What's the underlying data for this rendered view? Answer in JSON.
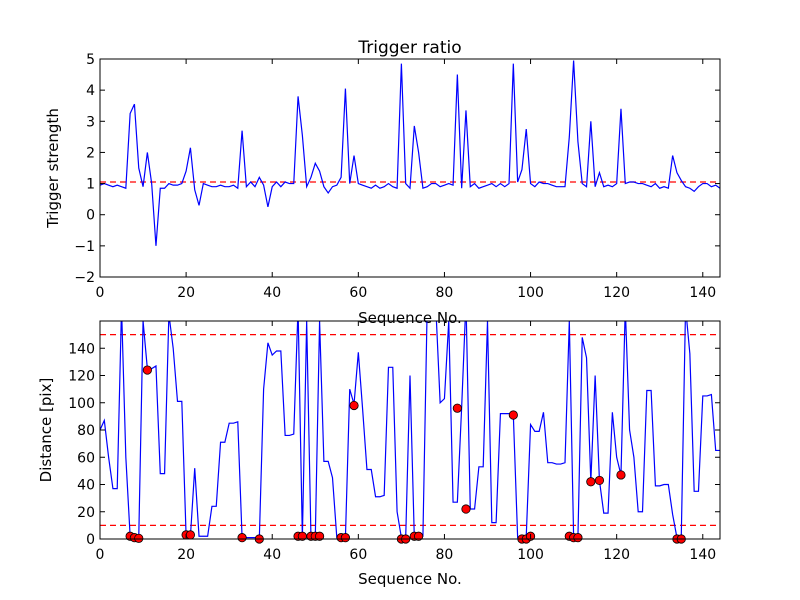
{
  "figure": {
    "title": "Trigger ratio"
  },
  "chart_data": [
    {
      "type": "line",
      "title": "Trigger ratio",
      "xlabel": "Sequence No.",
      "ylabel": "Trigger strength",
      "xlim": [
        0,
        144
      ],
      "ylim": [
        -2,
        5
      ],
      "xticks": [
        0,
        20,
        40,
        60,
        80,
        100,
        120,
        140
      ],
      "yticks": [
        -2,
        -1,
        0,
        1,
        2,
        3,
        4,
        5
      ],
      "grid": false,
      "threshold": 1.05,
      "series_color": "#0000ff",
      "threshold_color": "#ff0000",
      "series": [
        {
          "x": [
            0,
            1,
            2,
            3,
            4,
            5,
            6,
            7,
            8,
            9,
            10,
            11,
            12,
            13,
            14,
            15,
            16,
            17,
            18,
            19,
            20,
            21,
            22,
            23,
            24,
            25,
            26,
            27,
            28,
            29,
            30,
            31,
            32,
            33,
            34,
            35,
            36,
            37,
            38,
            39,
            40,
            41,
            42,
            43,
            44,
            45,
            46,
            47,
            48,
            49,
            50,
            51,
            52,
            53,
            54,
            55,
            56,
            57,
            58,
            59,
            60,
            61,
            62,
            63,
            64,
            65,
            66,
            67,
            68,
            69,
            70,
            71,
            72,
            73,
            74,
            75,
            76,
            77,
            78,
            79,
            80,
            81,
            82,
            83,
            84,
            85,
            86,
            87,
            88,
            89,
            90,
            91,
            92,
            93,
            94,
            95,
            96,
            97,
            98,
            99,
            100,
            101,
            102,
            103,
            104,
            105,
            106,
            107,
            108,
            109,
            110,
            111,
            112,
            113,
            114,
            115,
            116,
            117,
            118,
            119,
            120,
            121,
            122,
            123,
            124,
            125,
            126,
            127,
            128,
            129,
            130,
            131,
            132,
            133,
            134,
            135,
            136,
            137,
            138,
            139,
            140,
            141,
            142,
            143,
            144
          ],
          "y": [
            0.95,
            1.0,
            0.95,
            0.9,
            0.95,
            0.9,
            0.85,
            3.25,
            3.55,
            1.5,
            0.9,
            2.0,
            1.0,
            -1.0,
            0.85,
            0.85,
            1.0,
            0.95,
            0.95,
            1.0,
            1.4,
            2.15,
            0.8,
            0.3,
            1.0,
            0.95,
            0.9,
            0.9,
            0.95,
            0.9,
            0.9,
            0.95,
            0.85,
            2.7,
            0.9,
            1.05,
            0.9,
            1.2,
            0.95,
            0.25,
            0.9,
            1.05,
            0.9,
            1.05,
            1.0,
            1.0,
            3.8,
            2.55,
            0.9,
            1.2,
            1.65,
            1.4,
            0.9,
            0.7,
            0.9,
            0.95,
            1.2,
            4.05,
            1.0,
            1.9,
            1.0,
            0.95,
            0.9,
            0.85,
            0.95,
            0.85,
            0.9,
            1.0,
            0.9,
            0.85,
            4.85,
            1.0,
            0.85,
            2.85,
            2.0,
            0.85,
            0.9,
            1.0,
            1.0,
            0.9,
            0.95,
            1.0,
            0.95,
            4.5,
            0.85,
            3.35,
            0.9,
            1.0,
            0.85,
            0.9,
            0.95,
            1.0,
            0.9,
            1.0,
            0.9,
            1.0,
            4.85,
            1.05,
            1.45,
            2.75,
            1.0,
            0.9,
            1.05,
            1.0,
            1.0,
            0.95,
            0.9,
            0.9,
            0.9,
            2.5,
            4.95,
            2.35,
            1.0,
            0.9,
            3.0,
            0.9,
            1.35,
            0.9,
            0.95,
            0.9,
            1.0,
            3.4,
            1.0,
            1.05,
            1.05,
            1.0,
            1.0,
            0.95,
            0.9,
            1.0,
            0.85,
            0.9,
            0.85,
            1.9,
            1.35,
            1.1,
            0.9,
            0.85,
            0.75,
            0.9,
            1.0,
            1.0,
            0.9,
            0.95,
            0.85
          ]
        }
      ]
    },
    {
      "type": "line",
      "title": "",
      "xlabel": "Sequence No.",
      "ylabel": "Distance [pix]",
      "xlim": [
        0,
        144
      ],
      "ylim": [
        0,
        160
      ],
      "xticks": [
        0,
        20,
        40,
        60,
        80,
        100,
        120,
        140
      ],
      "yticks": [
        0,
        20,
        40,
        60,
        80,
        100,
        120,
        140
      ],
      "grid": false,
      "thresholds": [
        10,
        150
      ],
      "series_color": "#0000ff",
      "threshold_color": "#ff0000",
      "marker_color": "#ff0000",
      "series": [
        {
          "x": [
            0,
            1,
            2,
            3,
            4,
            5,
            6,
            7,
            8,
            9,
            10,
            11,
            12,
            13,
            14,
            15,
            16,
            17,
            18,
            19,
            20,
            21,
            22,
            23,
            24,
            25,
            26,
            27,
            28,
            29,
            30,
            31,
            32,
            33,
            34,
            35,
            36,
            37,
            38,
            39,
            40,
            41,
            42,
            43,
            44,
            45,
            46,
            47,
            48,
            49,
            50,
            51,
            52,
            53,
            54,
            55,
            56,
            57,
            58,
            59,
            60,
            61,
            62,
            63,
            64,
            65,
            66,
            67,
            68,
            69,
            70,
            71,
            72,
            73,
            74,
            75,
            76,
            77,
            78,
            79,
            80,
            81,
            82,
            83,
            84,
            85,
            86,
            87,
            88,
            89,
            90,
            91,
            92,
            93,
            94,
            95,
            96,
            97,
            98,
            99,
            100,
            101,
            102,
            103,
            104,
            105,
            106,
            107,
            108,
            109,
            110,
            111,
            112,
            113,
            114,
            115,
            116,
            117,
            118,
            119,
            120,
            121,
            122,
            123,
            124,
            125,
            126,
            127,
            128,
            129,
            130,
            131,
            132,
            133,
            134,
            135,
            136,
            137,
            138,
            139,
            140,
            141,
            142,
            143,
            144
          ],
          "y": [
            80,
            87,
            60,
            37,
            37,
            170,
            60,
            2,
            1,
            1,
            160,
            125,
            125,
            127,
            48,
            48,
            165,
            140,
            101,
            101,
            2,
            2,
            52,
            2,
            2,
            2,
            24,
            24,
            71,
            71,
            85,
            85,
            86,
            1,
            1,
            1,
            1,
            0,
            110,
            144,
            135,
            138,
            138,
            76,
            76,
            77,
            170,
            1,
            160,
            1,
            1,
            160,
            57,
            57,
            45,
            1,
            1,
            1,
            110,
            99,
            137,
            95,
            51,
            51,
            31,
            31,
            32,
            126,
            126,
            20,
            1,
            1,
            120,
            1,
            1,
            2,
            172,
            170,
            170,
            100,
            103,
            160,
            27,
            27,
            97,
            175,
            22,
            22,
            53,
            53,
            160,
            12,
            12,
            92,
            92,
            92,
            91,
            1,
            1,
            2,
            84,
            79,
            79,
            93,
            56,
            56,
            55,
            55,
            56,
            160,
            2,
            1,
            148,
            133,
            42,
            120,
            43,
            19,
            19,
            93,
            60,
            47,
            170,
            80,
            60,
            20,
            20,
            109,
            109,
            39,
            39,
            40,
            40,
            18,
            1,
            1,
            170,
            136,
            35,
            35,
            105,
            105,
            106,
            65,
            65
          ]
        }
      ],
      "markers": {
        "x": [
          7,
          8,
          9,
          11,
          20,
          21,
          33,
          37,
          46,
          47,
          49,
          50,
          51,
          56,
          57,
          59,
          70,
          71,
          73,
          74,
          83,
          85,
          96,
          98,
          99,
          100,
          109,
          110,
          111,
          114,
          116,
          121,
          134,
          135
        ],
        "y": [
          2,
          1,
          0.5,
          124,
          3,
          3,
          1,
          0,
          2,
          2,
          2,
          2,
          2,
          1,
          1,
          98,
          0,
          0,
          2,
          2,
          96,
          22,
          91,
          0,
          0,
          2,
          2,
          1,
          1,
          42,
          43,
          47,
          0,
          0
        ]
      }
    }
  ]
}
